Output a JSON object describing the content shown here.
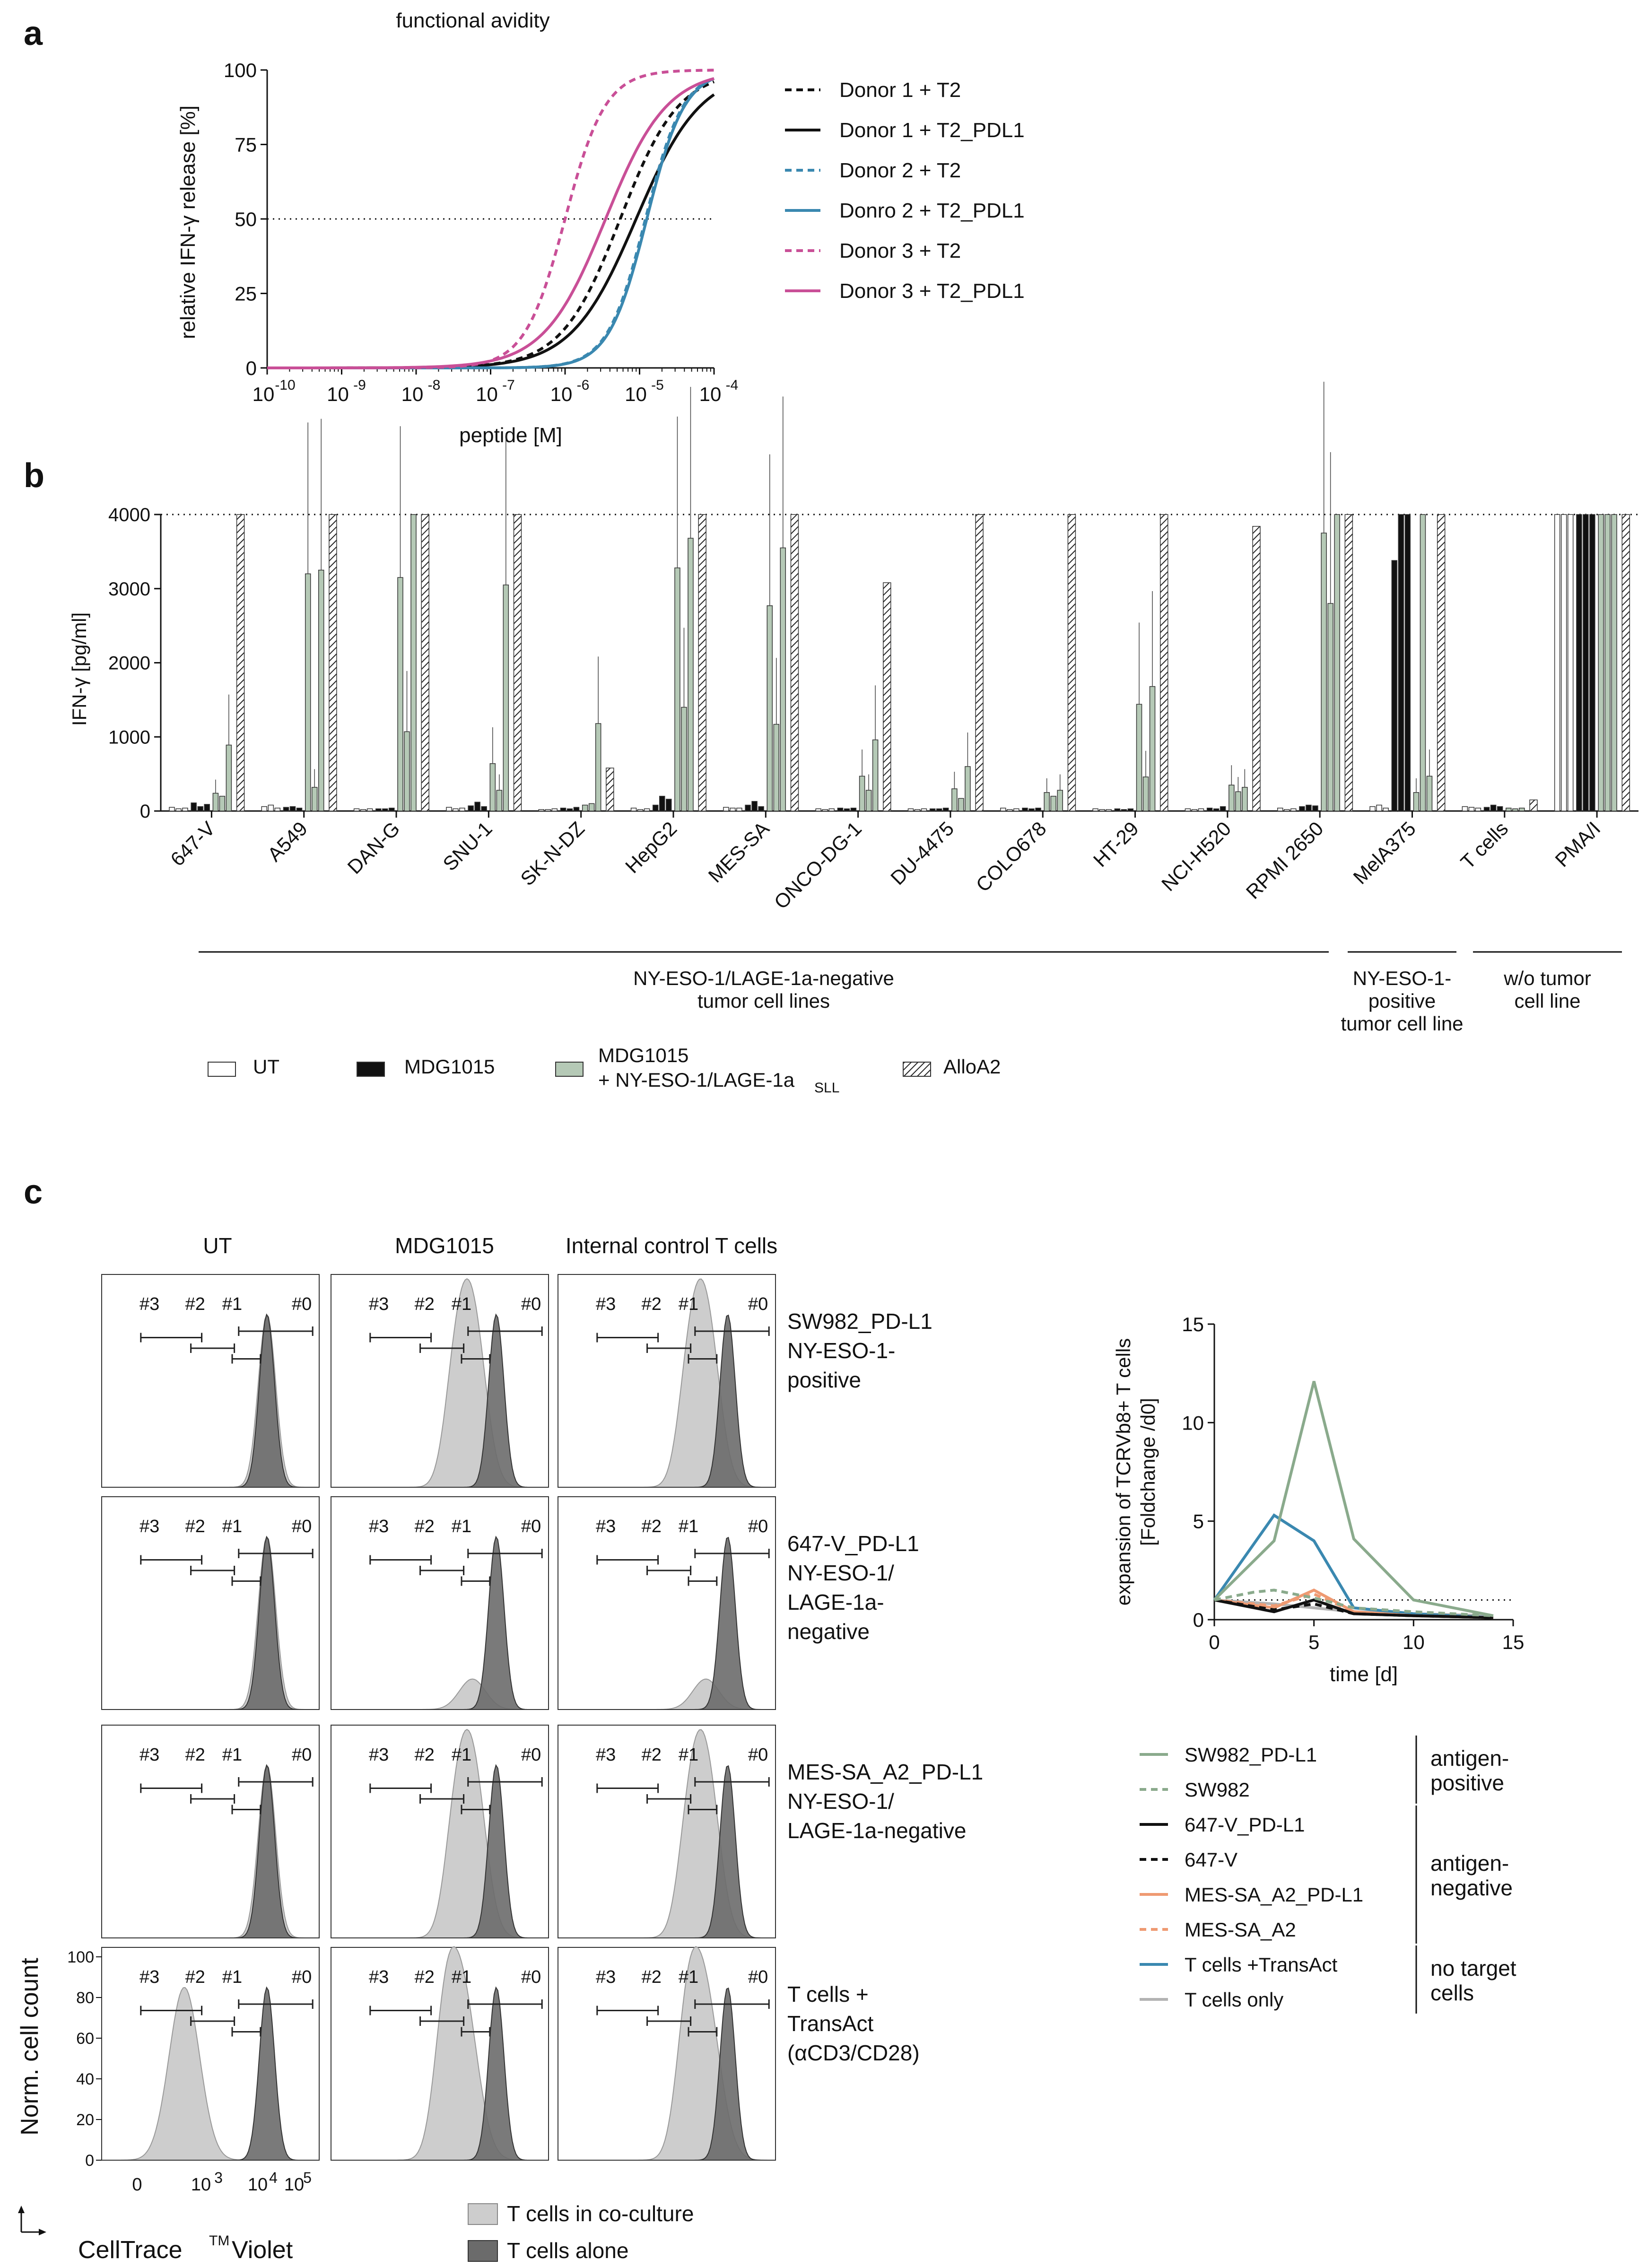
{
  "panel_labels": {
    "a": "a",
    "b": "b",
    "c": "c"
  },
  "colors": {
    "black": "#111111",
    "blue": "#3a88b0",
    "pink": "#c94f97",
    "sage": "#8aaa8c",
    "bar_green": "#b5c9b6",
    "orange": "#ef9a72",
    "grey": "#b3b3b3",
    "dark_hist": "#6b6b6b",
    "light_hist": "#cdcdcd"
  },
  "chart_data": [
    {
      "type": "line",
      "title": "functional avidity",
      "xlabel": "peptide [M]",
      "ylabel": "relative IFN-γ release [%]",
      "x_scale": "log",
      "xlim": [
        "1e-10",
        "1e-4"
      ],
      "xtick_bases": [
        "10",
        "10",
        "10",
        "10",
        "10",
        "10",
        "10"
      ],
      "xtick_exps": [
        "-10",
        "-9",
        "-8",
        "-7",
        "-6",
        "-5",
        "-4"
      ],
      "ylim": [
        0,
        100
      ],
      "yticks": [
        "0",
        "25",
        "50",
        "75",
        "100"
      ],
      "reference_line": {
        "y": 50,
        "style": "dotted"
      },
      "series": [
        {
          "name": "Donor 1 + T2",
          "ec50": 5.5e-06,
          "hill": 1.1,
          "top": 100,
          "color": "#111111",
          "dash": "dashed"
        },
        {
          "name": "Donor 1 + T2_PDL1",
          "ec50": 9e-06,
          "hill": 1.0,
          "top": 100,
          "color": "#111111",
          "dash": "solid"
        },
        {
          "name": "Donor 2 + T2",
          "ec50": 1.2e-05,
          "hill": 1.7,
          "top": 100,
          "color": "#3a88b0",
          "dash": "dashed"
        },
        {
          "name": "Donro 2 + T2_PDL1",
          "ec50": 1.25e-05,
          "hill": 1.7,
          "top": 100,
          "color": "#3a88b0",
          "dash": "solid"
        },
        {
          "name": "Donor 3 + T2",
          "ec50": 1e-06,
          "hill": 1.6,
          "top": 100,
          "color": "#c94f97",
          "dash": "dashed"
        },
        {
          "name": "Donor 3 + T2_PDL1",
          "ec50": 3.5e-06,
          "hill": 1.05,
          "top": 100,
          "color": "#c94f97",
          "dash": "solid"
        }
      ]
    },
    {
      "type": "bar",
      "ylabel": "IFN-γ [pg/ml]",
      "ylim": [
        0,
        4000
      ],
      "yticks": [
        "0",
        "1000",
        "2000",
        "3000",
        "4000"
      ],
      "reference_line": {
        "y": 4000,
        "style": "dotted"
      },
      "categories": [
        "647-V",
        "A549",
        "DAN-G",
        "SNU-1",
        "SK-N-DZ",
        "HepG2",
        "MES-SA",
        "ONCO-DG-1",
        "DU-4475",
        "COLO678",
        "HT-29",
        "NCI-H520",
        "RPMI 2650",
        "MelA375",
        "T cells",
        "PMA/I"
      ],
      "series": [
        {
          "name": "UT",
          "values": [
            [
              50,
              30,
              40
            ],
            [
              60,
              80,
              40
            ],
            [
              30,
              20,
              30
            ],
            [
              50,
              30,
              40
            ],
            [
              20,
              20,
              30
            ],
            [
              40,
              20,
              30
            ],
            [
              50,
              40,
              40
            ],
            [
              30,
              20,
              30
            ],
            [
              30,
              20,
              30
            ],
            [
              40,
              20,
              30
            ],
            [
              30,
              20,
              20
            ],
            [
              30,
              20,
              30
            ],
            [
              40,
              20,
              30
            ],
            [
              60,
              80,
              40
            ],
            [
              60,
              50,
              40
            ],
            [
              4000,
              4000,
              4000
            ]
          ]
        },
        {
          "name": "MDG1015",
          "values": [
            [
              110,
              60,
              90
            ],
            [
              50,
              60,
              40
            ],
            [
              30,
              30,
              40
            ],
            [
              70,
              120,
              60
            ],
            [
              40,
              30,
              50
            ],
            [
              80,
              200,
              160
            ],
            [
              80,
              130,
              60
            ],
            [
              40,
              30,
              40
            ],
            [
              30,
              30,
              40
            ],
            [
              40,
              30,
              40
            ],
            [
              30,
              20,
              30
            ],
            [
              40,
              30,
              60
            ],
            [
              60,
              80,
              70
            ],
            [
              3380,
              4000,
              4000
            ],
            [
              50,
              80,
              60
            ],
            [
              4000,
              4000,
              4000
            ]
          ]
        },
        {
          "name": "MDG1015 + NY-ESO-1/LAGE-1a SLL",
          "values": [
            [
              240,
              200,
              890
            ],
            [
              3200,
              320,
              3250
            ],
            [
              3150,
              1070,
              4000
            ],
            [
              640,
              280,
              3050
            ],
            [
              80,
              100,
              1180
            ],
            [
              3280,
              1400,
              3680
            ],
            [
              2770,
              1170,
              3550
            ],
            [
              470,
              280,
              960
            ],
            [
              300,
              170,
              600
            ],
            [
              250,
              200,
              280
            ],
            [
              1440,
              460,
              1680
            ],
            [
              350,
              260,
              320
            ],
            [
              3750,
              2800,
              4000
            ],
            [
              250,
              4000,
              470
            ],
            [
              40,
              30,
              40
            ],
            [
              4000,
              4000,
              4000
            ]
          ]
        },
        {
          "name": "AlloA2",
          "values": [
            4000,
            4000,
            4000,
            4000,
            580,
            4000,
            4000,
            3080,
            4000,
            4000,
            4000,
            3840,
            4000,
            4000,
            150,
            4000
          ]
        }
      ],
      "groups": [
        {
          "label_lines": [
            "NY-ESO-1/LAGE-1a-negative",
            "tumor cell lines"
          ]
        },
        {
          "label_lines": [
            "NY-ESO-1-",
            "positive",
            "tumor cell line"
          ]
        },
        {
          "label_lines": [
            "w/o tumor",
            "cell line"
          ]
        }
      ],
      "legend": [
        "UT",
        "MDG1015",
        "MDG1015",
        "+ NY-ESO-1/LAGE-1a",
        "SLL",
        "AlloA2"
      ]
    },
    {
      "type": "line",
      "xlabel": "time [d]",
      "ylabel_lines": [
        "expansion of TCRVb8+ T cells",
        "[Foldchange /d0]"
      ],
      "xlim": [
        0,
        15
      ],
      "xticks": [
        "0",
        "5",
        "10",
        "15"
      ],
      "ylim": [
        0,
        15
      ],
      "yticks": [
        "0",
        "5",
        "10",
        "15"
      ],
      "reference_line": {
        "y": 1,
        "style": "dotted"
      },
      "series": [
        {
          "name": "SW982_PD-L1",
          "x": [
            0,
            3,
            5,
            7,
            10,
            14
          ],
          "y": [
            1,
            4,
            12.1,
            4.1,
            1.0,
            0.2
          ],
          "color": "#8aaa8c",
          "dash": "solid"
        },
        {
          "name": "SW982",
          "x": [
            0,
            2,
            3,
            5,
            7,
            10,
            14
          ],
          "y": [
            1,
            1.4,
            1.5,
            1.1,
            0.6,
            0.4,
            0.2
          ],
          "color": "#8aaa8c",
          "dash": "dashed"
        },
        {
          "name": "647-V_PD-L1",
          "x": [
            0,
            3,
            5,
            7,
            10,
            14
          ],
          "y": [
            1,
            0.4,
            1.0,
            0.3,
            0.2,
            0.1
          ],
          "color": "#111111",
          "dash": "solid"
        },
        {
          "name": "647-V",
          "x": [
            0,
            3,
            5,
            7,
            10,
            14
          ],
          "y": [
            1,
            0.5,
            0.8,
            0.3,
            0.2,
            0.1
          ],
          "color": "#111111",
          "dash": "dashed"
        },
        {
          "name": "MES-SA_A2_PD-L1",
          "x": [
            0,
            3,
            5,
            7,
            10,
            14
          ],
          "y": [
            1,
            0.6,
            1.5,
            0.4,
            0.2,
            0.1
          ],
          "color": "#ef9a72",
          "dash": "solid"
        },
        {
          "name": "MES-SA_A2",
          "x": [
            0,
            3,
            5,
            7,
            10,
            14
          ],
          "y": [
            1,
            0.7,
            1.3,
            0.4,
            0.2,
            0.1
          ],
          "color": "#ef9a72",
          "dash": "dashed"
        },
        {
          "name": "T cells +TransAct",
          "x": [
            0,
            3,
            5,
            7,
            10,
            14
          ],
          "y": [
            1,
            5.3,
            4.0,
            0.6,
            0.3,
            0.1
          ],
          "color": "#3a88b0",
          "dash": "solid"
        },
        {
          "name": "T cells only",
          "x": [
            0,
            3,
            5,
            7,
            10,
            14
          ],
          "y": [
            1,
            0.8,
            0.6,
            0.4,
            0.3,
            0.2
          ],
          "color": "#b3b3b3",
          "dash": "solid"
        }
      ],
      "legend_groups": [
        {
          "label_lines": [
            "antigen-",
            "positive"
          ]
        },
        {
          "label_lines": [
            "antigen-",
            "negative"
          ]
        },
        {
          "label_lines": [
            "no target",
            "cells"
          ]
        }
      ]
    }
  ],
  "histograms": {
    "type": "histogram-grid",
    "col_headers": [
      "UT",
      "MDG1015",
      "Internal control T cells"
    ],
    "row_labels": [
      [
        "SW982_PD-L1",
        "NY-ESO-1-",
        "positive"
      ],
      [
        "647-V_PD-L1",
        "NY-ESO-1/",
        "LAGE-1a-",
        "negative"
      ],
      [
        "MES-SA_A2_PD-L1",
        "NY-ESO-1/",
        "LAGE-1a-negative"
      ],
      [
        "T cells +",
        "TransAct",
        "(αCD3/CD28)"
      ]
    ],
    "gates": [
      "#3",
      "#2",
      "#1",
      "#0"
    ],
    "yticks": [
      "0",
      "20",
      "40",
      "60",
      "80",
      "100"
    ],
    "ylabel": "Norm. cell count",
    "xticks": [
      "0",
      "10",
      "3",
      "10",
      "4",
      "10",
      "5"
    ],
    "xlabel_parts": [
      "CellTrace",
      "TM",
      " Violet"
    ],
    "legend": [
      "T cells in co-culture",
      "T cells alone"
    ]
  }
}
